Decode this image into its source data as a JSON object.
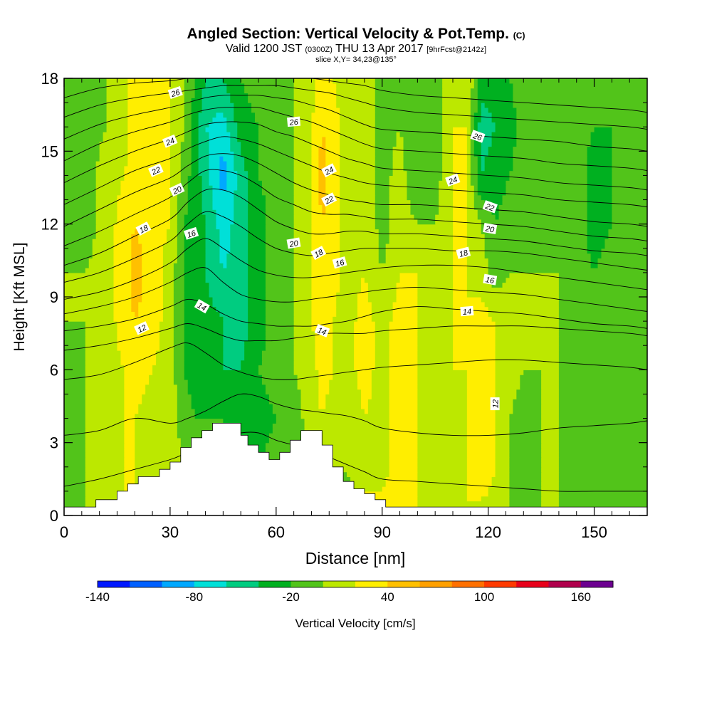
{
  "header": {
    "title": "Angled Section: Vertical Velocity & Pot.Temp.",
    "title_mark": "(C)",
    "valid_prefix": "Valid 1200 JST",
    "valid_zulu": "(0300Z)",
    "valid_date": "THU 13 Apr 2017",
    "forecast_tag": "[9hrFcst@2142z]",
    "slice": "slice X,Y= 34,23@135°"
  },
  "chart_data": {
    "type": "heatmap",
    "xlabel": "Distance [nm]",
    "ylabel": "Height [Kft MSL]",
    "xlim": [
      0,
      165
    ],
    "ylim": [
      0,
      18
    ],
    "x_ticks": [
      0,
      30,
      60,
      90,
      120,
      150
    ],
    "y_ticks": [
      0,
      3,
      6,
      9,
      12,
      15,
      18
    ],
    "grid": false,
    "colorbar": {
      "label": "Vertical Velocity [cm/s]",
      "tick_labels": [
        "-140",
        "-80",
        "-20",
        "40",
        "100",
        "160"
      ],
      "tick_values": [
        -140,
        -80,
        -20,
        40,
        100,
        160
      ],
      "range": [
        -140,
        180
      ],
      "step": 20,
      "colors": [
        "#0018ff",
        "#0060ff",
        "#00a8ff",
        "#00e0d8",
        "#00cc80",
        "#00b020",
        "#52c41a",
        "#bce800",
        "#ffee00",
        "#ffc000",
        "#ffa000",
        "#ff7000",
        "#ff3a00",
        "#e8001a",
        "#b0004c",
        "#6c0090"
      ]
    },
    "color_field": {
      "x": [
        0,
        6,
        12,
        17,
        20,
        25,
        30,
        34,
        37,
        40,
        45,
        50,
        55,
        60,
        65,
        70,
        73,
        76,
        80,
        85,
        90,
        95,
        100,
        105,
        110,
        114,
        118,
        122,
        126,
        130,
        135,
        140,
        145,
        150,
        155,
        160,
        165
      ],
      "y": [
        0,
        2,
        4,
        6,
        8,
        10,
        12,
        14,
        16,
        18
      ],
      "values": [
        [
          0,
          0,
          10,
          20,
          20,
          10,
          10,
          0,
          0,
          0,
          10,
          0,
          -10,
          -10,
          0,
          10,
          10,
          0,
          -10,
          20,
          30,
          40,
          20,
          10,
          10,
          20,
          10,
          10,
          0,
          -10,
          0,
          0,
          -10,
          -20,
          -10,
          -10,
          -10
        ],
        [
          -10,
          0,
          10,
          20,
          20,
          10,
          10,
          0,
          -10,
          -10,
          -10,
          -10,
          -20,
          -10,
          -10,
          0,
          10,
          10,
          0,
          20,
          10,
          30,
          20,
          10,
          10,
          20,
          40,
          20,
          0,
          -10,
          0,
          0,
          -10,
          -20,
          -20,
          -10,
          -10
        ],
        [
          -10,
          0,
          10,
          20,
          20,
          10,
          10,
          -10,
          -20,
          -20,
          -20,
          -30,
          -30,
          -20,
          -10,
          10,
          20,
          10,
          0,
          20,
          10,
          30,
          20,
          10,
          10,
          20,
          40,
          20,
          0,
          -10,
          0,
          0,
          -10,
          -20,
          -20,
          -10,
          -10
        ],
        [
          -10,
          0,
          10,
          20,
          30,
          20,
          10,
          -20,
          -30,
          -30,
          -40,
          -40,
          -20,
          -10,
          0,
          10,
          30,
          20,
          10,
          30,
          10,
          40,
          20,
          10,
          20,
          20,
          40,
          20,
          10,
          0,
          0,
          0,
          -10,
          -10,
          -10,
          -10,
          -10
        ],
        [
          0,
          0,
          10,
          30,
          40,
          30,
          10,
          -20,
          -30,
          -30,
          -40,
          -50,
          -30,
          -10,
          0,
          20,
          30,
          20,
          10,
          30,
          10,
          30,
          20,
          10,
          20,
          20,
          30,
          20,
          10,
          0,
          0,
          0,
          0,
          -20,
          -10,
          -10,
          0
        ],
        [
          0,
          0,
          10,
          30,
          50,
          30,
          10,
          -20,
          -30,
          -40,
          -60,
          -50,
          -30,
          -10,
          0,
          20,
          40,
          30,
          10,
          20,
          0,
          20,
          20,
          10,
          20,
          20,
          10,
          -10,
          0,
          0,
          0,
          0,
          -10,
          -20,
          -10,
          -10,
          0
        ],
        [
          -10,
          -10,
          10,
          30,
          40,
          30,
          20,
          -20,
          -30,
          -40,
          -70,
          -50,
          -30,
          -10,
          0,
          20,
          40,
          30,
          10,
          20,
          -10,
          10,
          0,
          0,
          20,
          20,
          0,
          -20,
          -10,
          -10,
          -10,
          0,
          -10,
          -30,
          -20,
          -10,
          0
        ],
        [
          -10,
          -10,
          10,
          20,
          30,
          30,
          20,
          -10,
          -30,
          -50,
          -90,
          -50,
          -20,
          -10,
          0,
          20,
          50,
          30,
          10,
          20,
          -10,
          10,
          -20,
          -10,
          20,
          20,
          -40,
          -30,
          -20,
          -10,
          -10,
          0,
          -10,
          -30,
          -20,
          -10,
          0
        ],
        [
          -10,
          -10,
          0,
          10,
          30,
          30,
          20,
          0,
          -30,
          -60,
          -70,
          -30,
          -20,
          -10,
          0,
          20,
          40,
          30,
          10,
          10,
          -10,
          0,
          -20,
          -10,
          20,
          20,
          -50,
          -40,
          -30,
          -10,
          -10,
          0,
          -10,
          -20,
          -20,
          -10,
          0
        ],
        [
          -10,
          -10,
          0,
          10,
          30,
          30,
          20,
          0,
          -20,
          -40,
          -40,
          -20,
          -10,
          -10,
          0,
          10,
          30,
          20,
          10,
          10,
          -10,
          0,
          -10,
          -10,
          10,
          20,
          -30,
          -30,
          -20,
          -10,
          -10,
          0,
          -10,
          -20,
          -10,
          -10,
          0
        ]
      ]
    },
    "terrain": {
      "x": [
        0,
        9,
        12,
        15,
        18,
        21,
        24,
        27,
        30,
        33,
        36,
        39,
        42,
        45,
        48,
        50,
        52,
        55,
        58,
        61,
        64,
        67,
        70,
        73,
        76,
        79,
        82,
        85,
        88,
        91,
        165
      ],
      "height": [
        0.35,
        0.65,
        0.65,
        1.0,
        1.3,
        1.6,
        1.6,
        1.9,
        2.2,
        2.8,
        3.2,
        3.5,
        3.8,
        3.8,
        3.8,
        3.3,
        2.9,
        2.6,
        2.3,
        2.6,
        3.1,
        3.5,
        3.5,
        2.9,
        2.0,
        1.4,
        1.1,
        0.9,
        0.65,
        0.35,
        0.35
      ]
    },
    "theta_contours": {
      "x": [
        0,
        10,
        20,
        30,
        35,
        40,
        45,
        50,
        55,
        60,
        65,
        70,
        75,
        80,
        85,
        90,
        100,
        110,
        120,
        130,
        140,
        150,
        160,
        165
      ],
      "levels": [
        {
          "theta": 10,
          "heights": [
            1.2,
            1.5,
            1.9,
            2.3,
            2.6,
            2.9,
            3.2,
            3.4,
            3.4,
            3.1,
            2.9,
            2.7,
            2.4,
            2.1,
            1.8,
            1.5,
            1.4,
            1.3,
            1.2,
            1.1,
            1.0,
            1.0,
            1.0,
            1.0
          ]
        },
        {
          "theta": 11,
          "heights": [
            3.3,
            3.5,
            4.0,
            3.8,
            4.0,
            4.3,
            4.7,
            5.0,
            4.9,
            4.6,
            4.4,
            4.3,
            4.2,
            4.1,
            3.9,
            3.6,
            3.4,
            3.3,
            3.3,
            3.4,
            3.6,
            3.7,
            3.8,
            3.9
          ]
        },
        {
          "theta": 12,
          "heights": [
            5.6,
            5.8,
            6.3,
            6.9,
            7.1,
            6.7,
            6.2,
            5.9,
            5.7,
            5.6,
            5.6,
            5.7,
            5.8,
            5.9,
            6.0,
            6.1,
            6.2,
            6.3,
            6.4,
            6.4,
            6.3,
            6.2,
            6.1,
            6.0
          ]
        },
        {
          "theta": 13,
          "heights": [
            6.8,
            7.0,
            7.3,
            7.7,
            7.9,
            7.7,
            7.4,
            7.2,
            7.2,
            7.2,
            7.3,
            7.4,
            7.5,
            7.5,
            7.5,
            7.6,
            7.7,
            7.8,
            7.8,
            7.8,
            7.7,
            7.6,
            7.5,
            7.4
          ]
        },
        {
          "theta": 14,
          "heights": [
            7.6,
            7.8,
            8.1,
            8.6,
            8.9,
            8.7,
            8.3,
            8.0,
            7.9,
            7.8,
            7.8,
            7.8,
            7.9,
            8.0,
            8.2,
            8.4,
            8.6,
            8.5,
            8.4,
            8.3,
            8.1,
            7.9,
            7.8,
            7.7
          ]
        },
        {
          "theta": 15,
          "heights": [
            8.3,
            8.6,
            9.0,
            9.6,
            10.0,
            10.2,
            9.6,
            9.1,
            8.9,
            8.8,
            8.8,
            8.9,
            9.0,
            9.1,
            9.2,
            9.3,
            9.4,
            9.3,
            9.2,
            9.1,
            8.9,
            8.7,
            8.5,
            8.4
          ]
        },
        {
          "theta": 16,
          "heights": [
            8.9,
            9.2,
            9.7,
            10.4,
            11.0,
            11.4,
            11.0,
            10.5,
            10.1,
            9.9,
            9.8,
            9.8,
            9.9,
            10.0,
            10.1,
            10.2,
            10.3,
            10.3,
            10.2,
            10.0,
            9.8,
            9.6,
            9.4,
            9.3
          ]
        },
        {
          "theta": 17,
          "heights": [
            9.6,
            10.0,
            10.6,
            11.3,
            12.0,
            12.5,
            12.3,
            11.9,
            11.4,
            11.0,
            10.8,
            10.7,
            10.8,
            10.9,
            11.0,
            11.0,
            11.0,
            10.9,
            10.9,
            10.8,
            10.6,
            10.4,
            10.2,
            10.1
          ]
        },
        {
          "theta": 18,
          "heights": [
            10.3,
            10.8,
            11.5,
            12.2,
            12.9,
            13.4,
            13.4,
            13.1,
            12.6,
            12.1,
            11.8,
            11.6,
            11.6,
            11.7,
            11.7,
            11.6,
            11.6,
            11.5,
            11.4,
            11.3,
            11.1,
            10.9,
            10.8,
            10.7
          ]
        },
        {
          "theta": 19,
          "heights": [
            11.1,
            11.7,
            12.4,
            13.1,
            13.7,
            14.2,
            14.2,
            14.0,
            13.6,
            13.1,
            12.8,
            12.5,
            12.4,
            12.4,
            12.3,
            12.2,
            12.2,
            12.1,
            12.0,
            11.9,
            11.7,
            11.5,
            11.4,
            11.3
          ]
        },
        {
          "theta": 20,
          "heights": [
            11.9,
            12.6,
            13.3,
            13.9,
            14.4,
            14.8,
            14.9,
            14.8,
            14.5,
            14.1,
            13.7,
            13.4,
            13.2,
            13.0,
            12.9,
            12.8,
            12.8,
            12.7,
            12.6,
            12.5,
            12.3,
            12.1,
            12.0,
            11.9
          ]
        },
        {
          "theta": 21,
          "heights": [
            12.8,
            13.5,
            14.2,
            14.7,
            15.1,
            15.4,
            15.6,
            15.5,
            15.3,
            15.0,
            14.7,
            14.4,
            14.1,
            13.9,
            13.7,
            13.6,
            13.5,
            13.4,
            13.3,
            13.2,
            13.0,
            12.9,
            12.8,
            12.7
          ]
        },
        {
          "theta": 22,
          "heights": [
            13.7,
            14.4,
            15.0,
            15.5,
            15.8,
            16.1,
            16.2,
            16.2,
            16.1,
            15.8,
            15.6,
            15.3,
            15.0,
            14.7,
            14.5,
            14.3,
            14.2,
            14.1,
            14.0,
            13.9,
            13.7,
            13.6,
            13.5,
            13.4
          ]
        },
        {
          "theta": 23,
          "heights": [
            14.6,
            15.3,
            15.8,
            16.2,
            16.5,
            16.7,
            16.8,
            16.8,
            16.8,
            16.6,
            16.4,
            16.2,
            15.9,
            15.6,
            15.3,
            15.1,
            15.0,
            14.9,
            14.8,
            14.7,
            14.5,
            14.4,
            14.3,
            14.2
          ]
        },
        {
          "theta": 24,
          "heights": [
            15.5,
            16.1,
            16.5,
            16.8,
            17.0,
            17.2,
            17.3,
            17.3,
            17.3,
            17.2,
            17.1,
            16.9,
            16.7,
            16.4,
            16.1,
            15.9,
            15.8,
            15.7,
            15.6,
            15.5,
            15.4,
            15.2,
            15.1,
            15.0
          ]
        },
        {
          "theta": 25,
          "heights": [
            16.4,
            16.9,
            17.2,
            17.4,
            17.5,
            17.6,
            17.7,
            17.7,
            17.7,
            17.7,
            17.6,
            17.5,
            17.4,
            17.2,
            17.0,
            16.8,
            16.6,
            16.5,
            16.4,
            16.3,
            16.2,
            16.1,
            16.0,
            15.9
          ]
        },
        {
          "theta": 26,
          "heights": [
            17.2,
            17.6,
            17.8,
            17.9,
            18.0,
            18.0,
            18.0,
            18.0,
            18.0,
            18.0,
            18.0,
            18.0,
            17.9,
            17.8,
            17.7,
            17.5,
            17.3,
            17.2,
            17.1,
            17.0,
            16.9,
            16.8,
            16.7,
            16.6
          ]
        }
      ]
    },
    "contour_labels": [
      {
        "text": "26",
        "x": 31.5,
        "y": 17.4,
        "angle": -18
      },
      {
        "text": "24",
        "x": 30,
        "y": 15.4,
        "angle": -22
      },
      {
        "text": "22",
        "x": 26,
        "y": 14.2,
        "angle": -24
      },
      {
        "text": "20",
        "x": 32,
        "y": 13.4,
        "angle": -25
      },
      {
        "text": "18",
        "x": 22.5,
        "y": 11.8,
        "angle": -28
      },
      {
        "text": "16",
        "x": 36,
        "y": 11.6,
        "angle": -18
      },
      {
        "text": "14",
        "x": 39,
        "y": 8.6,
        "angle": 30
      },
      {
        "text": "12",
        "x": 22,
        "y": 7.7,
        "angle": -25
      },
      {
        "text": "26",
        "x": 65,
        "y": 16.2,
        "angle": -5
      },
      {
        "text": "24",
        "x": 75,
        "y": 14.2,
        "angle": -28
      },
      {
        "text": "22",
        "x": 75,
        "y": 13.0,
        "angle": -28
      },
      {
        "text": "20",
        "x": 65,
        "y": 11.2,
        "angle": -10
      },
      {
        "text": "18",
        "x": 72,
        "y": 10.8,
        "angle": -28
      },
      {
        "text": "16",
        "x": 78,
        "y": 10.4,
        "angle": -15
      },
      {
        "text": "14",
        "x": 73,
        "y": 7.6,
        "angle": 22
      },
      {
        "text": "24",
        "x": 110,
        "y": 13.8,
        "angle": -20
      },
      {
        "text": "26",
        "x": 117,
        "y": 15.6,
        "angle": 20
      },
      {
        "text": "22",
        "x": 120.5,
        "y": 12.7,
        "angle": 20
      },
      {
        "text": "20",
        "x": 120.5,
        "y": 11.8,
        "angle": 10
      },
      {
        "text": "18",
        "x": 113,
        "y": 10.8,
        "angle": -15
      },
      {
        "text": "16",
        "x": 120.5,
        "y": 9.7,
        "angle": 10
      },
      {
        "text": "14",
        "x": 114,
        "y": 8.4,
        "angle": -5
      },
      {
        "text": "12",
        "x": 122,
        "y": 4.6,
        "angle": -90
      }
    ]
  }
}
